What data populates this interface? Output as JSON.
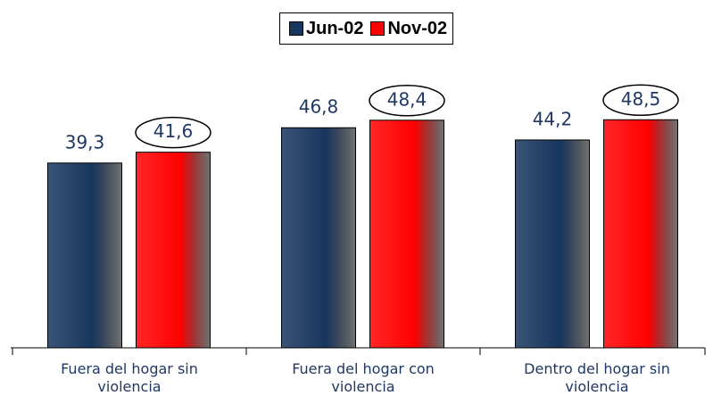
{
  "chart_data": {
    "type": "bar",
    "categories": [
      "Fuera del hogar sin violencia",
      "Fuera del hogar con violencia",
      "Dentro del hogar sin violencia"
    ],
    "series": [
      {
        "name": "Jun-02",
        "color": "#17365d",
        "values": [
          39.3,
          46.8,
          44.2
        ],
        "value_labels": [
          "39,3",
          "46,8",
          "44,2"
        ]
      },
      {
        "name": "Nov-02",
        "color": "#ff0000",
        "values": [
          41.6,
          48.4,
          48.5
        ],
        "value_labels": [
          "41,6",
          "48,4",
          "48,5"
        ]
      }
    ],
    "ylim": [
      0,
      55
    ],
    "legend": "top"
  }
}
